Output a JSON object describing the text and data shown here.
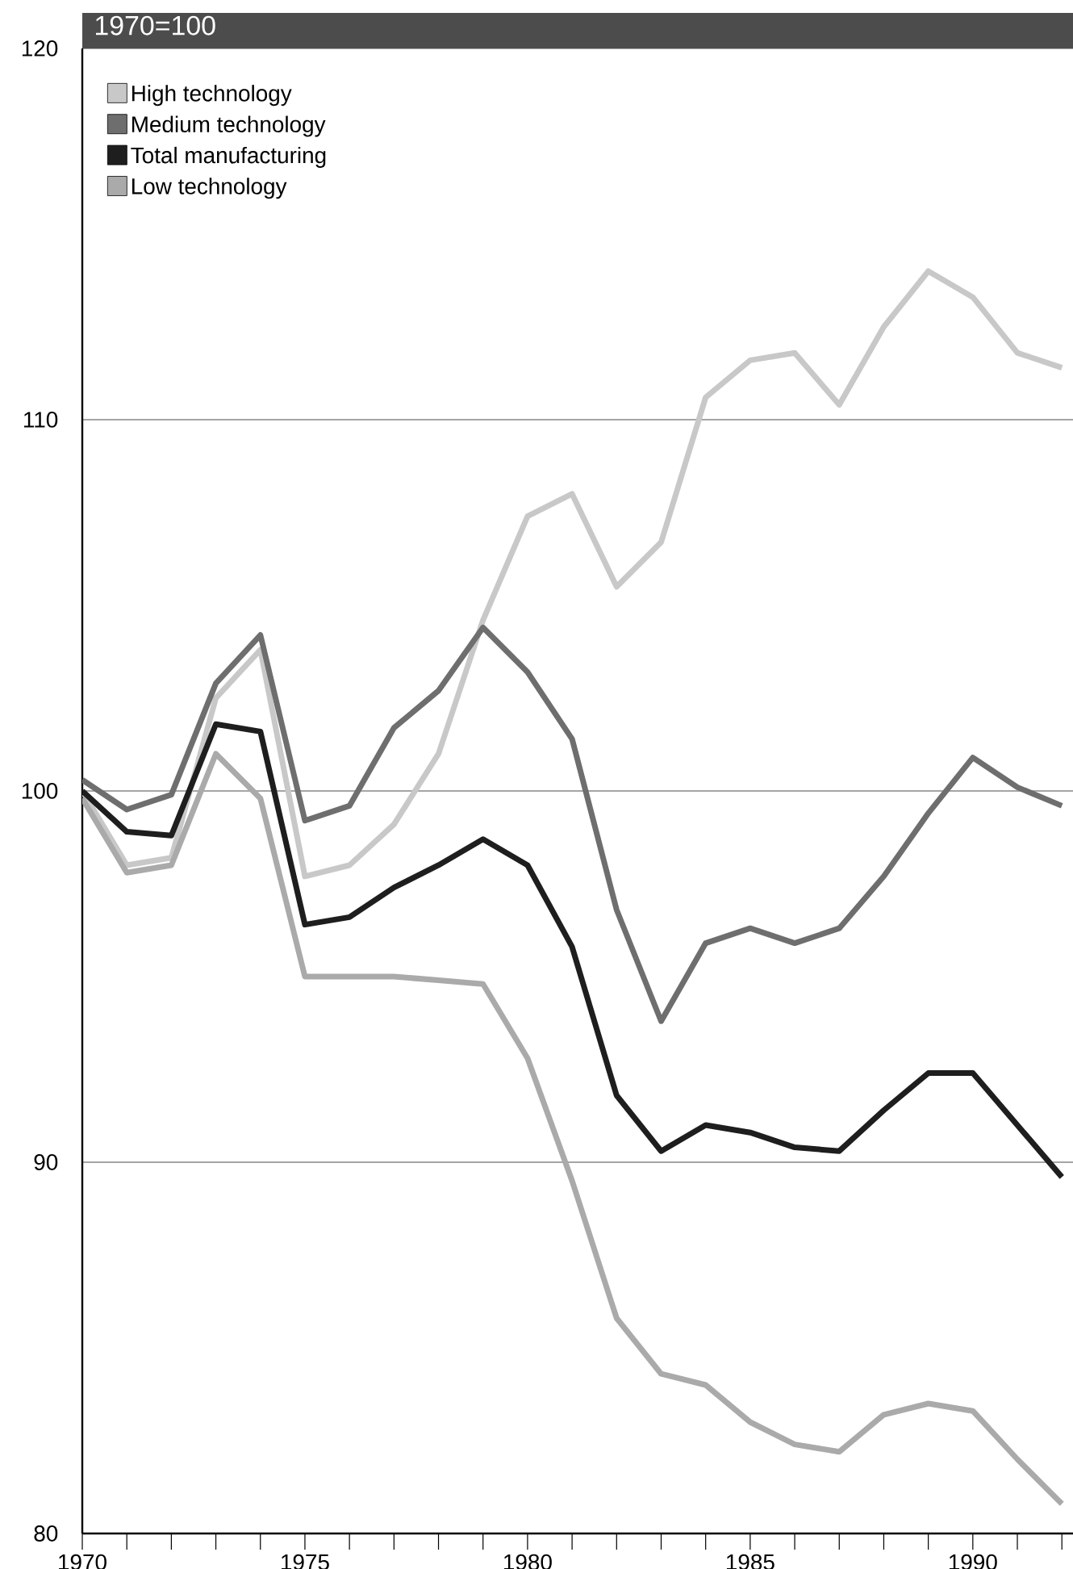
{
  "chart_data": {
    "type": "line",
    "title": "1970=100",
    "x": [
      1970,
      1971,
      1972,
      1973,
      1974,
      1975,
      1976,
      1977,
      1978,
      1979,
      1980,
      1981,
      1982,
      1983,
      1984,
      1985,
      1986,
      1987,
      1988,
      1989,
      1990,
      1991,
      1992
    ],
    "series": [
      {
        "name": "High technology",
        "color": "#c8c8c8",
        "values": [
          100.0,
          98.0,
          98.2,
          102.5,
          103.8,
          97.7,
          98.0,
          99.1,
          101.0,
          104.6,
          107.4,
          108.0,
          105.5,
          106.7,
          110.6,
          111.6,
          111.8,
          110.4,
          112.5,
          114.0,
          113.3,
          111.8,
          111.4
        ]
      },
      {
        "name": "Medium technology",
        "color": "#6e6e6e",
        "values": [
          100.3,
          99.5,
          99.9,
          102.9,
          104.2,
          99.2,
          99.6,
          101.7,
          102.7,
          104.4,
          103.2,
          101.4,
          96.8,
          93.8,
          95.9,
          96.3,
          95.9,
          96.3,
          97.7,
          99.4,
          100.9,
          100.1,
          99.6
        ]
      },
      {
        "name": "Total manufacturing",
        "color": "#1e1e1e",
        "values": [
          100.0,
          98.9,
          98.8,
          101.8,
          101.6,
          96.4,
          96.6,
          97.4,
          98.0,
          98.7,
          98.0,
          95.8,
          91.8,
          90.3,
          91.0,
          90.8,
          90.4,
          90.3,
          91.4,
          92.4,
          92.4,
          91.0,
          89.6
        ]
      },
      {
        "name": "Low technology",
        "color": "#aaaaaa",
        "values": [
          99.8,
          97.8,
          98.0,
          101.0,
          99.8,
          95.0,
          95.0,
          95.0,
          94.9,
          94.8,
          92.8,
          89.5,
          85.8,
          84.3,
          84.0,
          83.0,
          82.4,
          82.2,
          83.2,
          83.5,
          83.3,
          82.0,
          80.8
        ]
      }
    ],
    "xlim": [
      1970,
      1992.25
    ],
    "xticks": [
      1970,
      {
        "value": 1971,
        "label": null
      },
      {
        "value": 1972,
        "label": null
      },
      {
        "value": 1973,
        "label": null
      },
      {
        "value": 1974,
        "label": null
      },
      1975,
      {
        "value": 1976,
        "label": null
      },
      {
        "value": 1977,
        "label": null
      },
      {
        "value": 1978,
        "label": null
      },
      {
        "value": 1979,
        "label": null
      },
      1980,
      {
        "value": 1981,
        "label": null
      },
      {
        "value": 1982,
        "label": null
      },
      {
        "value": 1983,
        "label": null
      },
      {
        "value": 1984,
        "label": null
      },
      1985,
      {
        "value": 1986,
        "label": null
      },
      {
        "value": 1987,
        "label": null
      },
      {
        "value": 1988,
        "label": null
      },
      {
        "value": 1989,
        "label": null
      },
      1990,
      {
        "value": 1991,
        "label": null
      },
      {
        "value": 1992,
        "label": null
      }
    ],
    "ylim": [
      80,
      120
    ],
    "yticks": [
      80,
      90,
      100,
      110,
      120
    ],
    "grid": "y",
    "legend": "top left",
    "marker": "none",
    "line_style": "solid"
  }
}
